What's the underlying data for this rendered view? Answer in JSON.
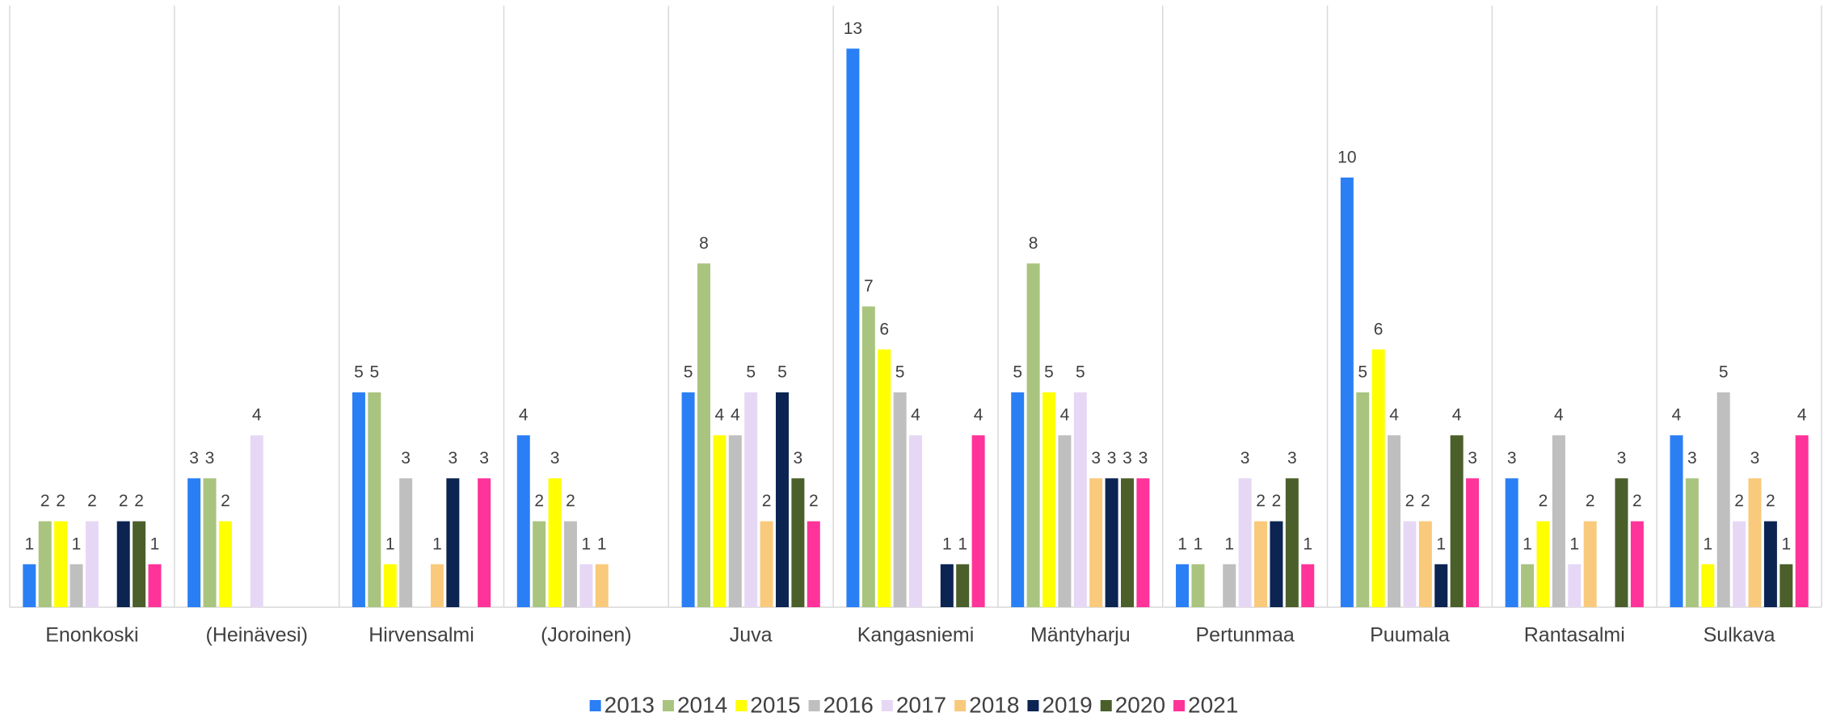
{
  "chart_data": {
    "type": "bar",
    "categories": [
      "Enonkoski",
      "(Heinävesi)",
      "Hirvensalmi",
      "(Joroinen)",
      "Juva",
      "Kangasniemi",
      "Mäntyharju",
      "Pertunmaa",
      "Puumala",
      "Rantasalmi",
      "Sulkava"
    ],
    "series": [
      {
        "name": "2013",
        "color": "#2a7ff5",
        "values": [
          1,
          3,
          5,
          4,
          5,
          13,
          5,
          1,
          10,
          3,
          4
        ]
      },
      {
        "name": "2014",
        "color": "#a9c47f",
        "values": [
          2,
          3,
          5,
          2,
          8,
          7,
          8,
          1,
          5,
          1,
          3
        ]
      },
      {
        "name": "2015",
        "color": "#ffff00",
        "values": [
          2,
          2,
          1,
          3,
          4,
          6,
          5,
          null,
          6,
          2,
          1
        ]
      },
      {
        "name": "2016",
        "color": "#bfbfbf",
        "values": [
          1,
          null,
          3,
          2,
          4,
          5,
          4,
          1,
          4,
          4,
          5
        ]
      },
      {
        "name": "2017",
        "color": "#e6d8f5",
        "values": [
          2,
          4,
          null,
          1,
          5,
          4,
          5,
          3,
          2,
          1,
          2
        ]
      },
      {
        "name": "2018",
        "color": "#f9c97c",
        "values": [
          null,
          null,
          1,
          1,
          2,
          null,
          3,
          2,
          2,
          2,
          3
        ]
      },
      {
        "name": "2019",
        "color": "#0b2452",
        "values": [
          2,
          null,
          3,
          null,
          5,
          1,
          3,
          2,
          1,
          null,
          2
        ]
      },
      {
        "name": "2020",
        "color": "#4b5f2b",
        "values": [
          2,
          null,
          null,
          null,
          3,
          1,
          3,
          3,
          4,
          3,
          1
        ]
      },
      {
        "name": "2021",
        "color": "#ff3399",
        "values": [
          1,
          null,
          3,
          null,
          2,
          4,
          3,
          1,
          3,
          2,
          4
        ]
      }
    ],
    "ylim": [
      0,
      14
    ],
    "grid": true,
    "legend": "bottom"
  }
}
